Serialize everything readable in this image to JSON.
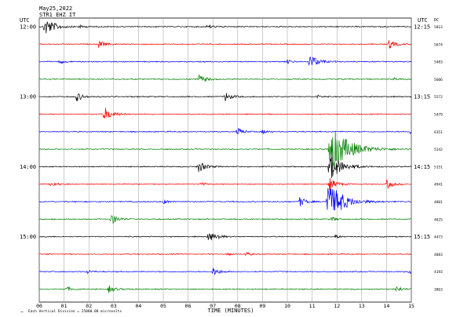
{
  "header": {
    "date": "May25,2022",
    "station": "STR1 EHZ IT",
    "left_axis_label": "UTC",
    "right_axis_label": "UTC",
    "right_col_label": "DC"
  },
  "footer": {
    "scale_note": "Each Vertical Division = 25000.00 microvolts",
    "scale_mark": "−"
  },
  "colors": {
    "trace_cycle": [
      "#000000",
      "#ff0000",
      "#0000ff",
      "#008000"
    ],
    "grid": "#9a9a9a"
  },
  "chart_data": {
    "type": "line",
    "title": "",
    "xlabel": "TIME (MINUTES)",
    "ylabel": "",
    "xlim": [
      0,
      15
    ],
    "x_ticks": [
      "00",
      "01",
      "02",
      "03",
      "04",
      "05",
      "06",
      "07",
      "08",
      "09",
      "10",
      "11",
      "12",
      "13",
      "14",
      "15"
    ],
    "grid": true,
    "rows_per_hour": 4,
    "left_hour_labels": [
      "12:00",
      "13:00",
      "14:00",
      "15:00"
    ],
    "right_hour_labels": [
      "12:15",
      "13:15",
      "14:15",
      "15:15"
    ],
    "dc_values": [
      "5813",
      "5674",
      "5483",
      "5606",
      "5572",
      "5479",
      "6351",
      "5242",
      "5151",
      "4941",
      "4801",
      "4625",
      "4473",
      "4083",
      "4193",
      "3863"
    ],
    "series": [
      {
        "values": [
          {
            "x": 0.2,
            "amp": 0.65
          },
          {
            "x": 1.6,
            "amp": 0.1
          },
          {
            "x": 6.8,
            "amp": 0.15
          }
        ]
      },
      {
        "values": [
          {
            "x": 2.4,
            "amp": 0.25
          },
          {
            "x": 14.1,
            "amp": 0.3
          }
        ]
      },
      {
        "values": [
          {
            "x": 0.8,
            "amp": 0.15
          },
          {
            "x": 10.9,
            "amp": 0.5
          },
          {
            "x": 10.0,
            "amp": 0.15
          }
        ]
      },
      {
        "values": [
          {
            "x": 6.4,
            "amp": 0.35
          },
          {
            "x": 14.3,
            "amp": 0.1
          }
        ]
      },
      {
        "values": [
          {
            "x": 1.5,
            "amp": 0.3
          },
          {
            "x": 7.5,
            "amp": 0.3
          },
          {
            "x": 11.2,
            "amp": 0.1
          }
        ]
      },
      {
        "values": [
          {
            "x": 2.6,
            "amp": 0.5
          }
        ]
      },
      {
        "values": [
          {
            "x": 8.0,
            "amp": 0.25
          },
          {
            "x": 9.0,
            "amp": 0.15
          },
          {
            "x": 14.9,
            "amp": 0.15
          }
        ]
      },
      {
        "values": [
          {
            "x": 11.7,
            "amp": 1.6
          }
        ]
      },
      {
        "values": [
          {
            "x": 6.4,
            "amp": 0.4
          },
          {
            "x": 11.7,
            "amp": 0.9
          }
        ]
      },
      {
        "values": [
          {
            "x": 0.5,
            "amp": 0.2
          },
          {
            "x": 6.5,
            "amp": 0.15
          },
          {
            "x": 11.7,
            "amp": 0.4
          },
          {
            "x": 14.0,
            "amp": 0.3
          }
        ]
      },
      {
        "values": [
          {
            "x": 5.0,
            "amp": 0.15
          },
          {
            "x": 10.5,
            "amp": 0.3
          },
          {
            "x": 11.6,
            "amp": 1.2
          },
          {
            "x": 12.0,
            "amp": 0.3
          }
        ]
      },
      {
        "values": [
          {
            "x": 2.9,
            "amp": 0.35
          },
          {
            "x": 11.8,
            "amp": 0.15
          }
        ]
      },
      {
        "values": [
          {
            "x": 6.8,
            "amp": 0.35
          },
          {
            "x": 7.2,
            "amp": 0.1
          },
          {
            "x": 11.9,
            "amp": 0.15
          }
        ]
      },
      {
        "values": [
          {
            "x": 8.3,
            "amp": 0.15
          },
          {
            "x": 7.6,
            "amp": 0.1
          }
        ]
      },
      {
        "values": [
          {
            "x": 1.9,
            "amp": 0.15
          },
          {
            "x": 7.0,
            "amp": 0.3
          },
          {
            "x": 14.9,
            "amp": 0.15
          }
        ]
      },
      {
        "values": [
          {
            "x": 1.1,
            "amp": 0.15
          },
          {
            "x": 2.8,
            "amp": 0.25
          },
          {
            "x": 14.4,
            "amp": 0.2
          }
        ]
      }
    ]
  }
}
